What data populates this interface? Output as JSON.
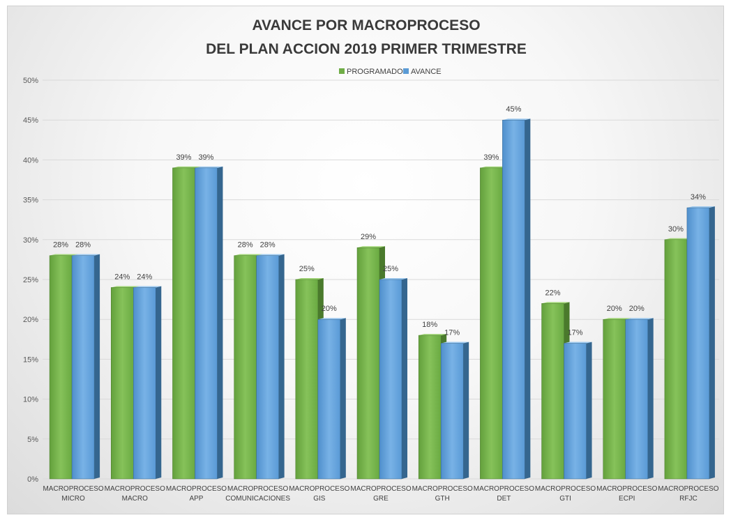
{
  "chart_data": {
    "type": "bar",
    "title_lines": [
      "AVANCE POR MACROPROCESO",
      "DEL PLAN ACCION  2019 PRIMER TRIMESTRE"
    ],
    "categories": [
      [
        "MACROPROCESO",
        "MICRO"
      ],
      [
        "MACROPROCESO",
        "MACRO"
      ],
      [
        "MACROPROCESO",
        "APP"
      ],
      [
        "MACROPROCESO",
        "COMUNICACIONES"
      ],
      [
        "MACROPROCESO",
        "GIS"
      ],
      [
        "MACROPROCESO",
        "GRE"
      ],
      [
        "MACROPROCESO",
        "GTH"
      ],
      [
        "MACROPROCESO",
        "DET"
      ],
      [
        "MACROPROCESO",
        "GTI"
      ],
      [
        "MACROPROCESO",
        "ECPI"
      ],
      [
        "MACROPROCESO",
        "RFJC"
      ]
    ],
    "series": [
      {
        "name": "PROGRAMADO",
        "color": "#70ad47",
        "values": [
          0.28,
          0.24,
          0.39,
          0.28,
          0.25,
          0.29,
          0.18,
          0.39,
          0.22,
          0.2,
          0.3
        ],
        "labels": [
          "28%",
          "24%",
          "39%",
          "28%",
          "25%",
          "29%",
          "18%",
          "39%",
          "22%",
          "20%",
          "30%"
        ]
      },
      {
        "name": "AVANCE",
        "color": "#5b9bd5",
        "values": [
          0.28,
          0.24,
          0.39,
          0.28,
          0.2,
          0.25,
          0.17,
          0.45,
          0.17,
          0.2,
          0.34
        ],
        "labels": [
          "28%",
          "24%",
          "39%",
          "28%",
          "20%",
          "25%",
          "17%",
          "45%",
          "17%",
          "20%",
          "34%"
        ]
      }
    ],
    "y_ticks": [
      "0%",
      "5%",
      "10%",
      "15%",
      "20%",
      "25%",
      "30%",
      "35%",
      "40%",
      "45%",
      "50%"
    ],
    "ylim": [
      0,
      0.5
    ],
    "legend_position": "top-center",
    "grid": true
  }
}
